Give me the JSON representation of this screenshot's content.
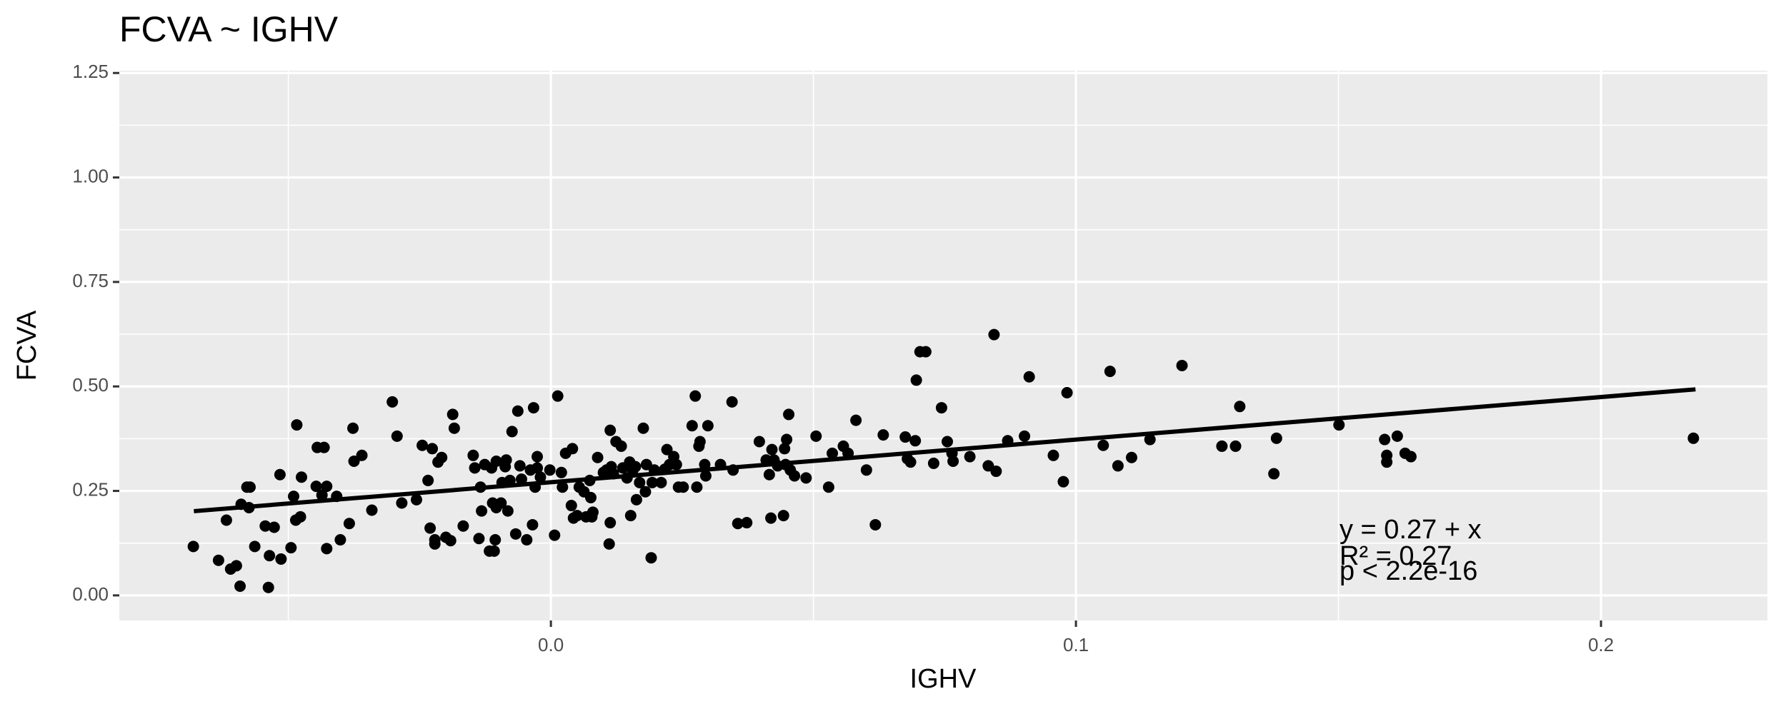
{
  "chart_data": {
    "type": "scatter",
    "title": "FCVA ~ IGHV",
    "x_label": "IGHV",
    "y_label": "FCVA",
    "color": "#000000",
    "grid": true,
    "xlim": [
      -0.0822,
      0.2317
    ],
    "ylim": [
      -0.06,
      1.2555
    ],
    "xticks": [
      {
        "value": 0,
        "label": "0.0"
      },
      0.1,
      0.2
    ],
    "yticks": [
      {
        "value": 0,
        "label": "0.00"
      },
      0.25,
      {
        "value": 0.5,
        "label": "0.50"
      },
      0.75,
      {
        "value": 1,
        "label": "1.00"
      },
      1.25
    ],
    "xminor": [
      -0.05,
      0.05,
      0.15
    ],
    "yminor": [
      0.125,
      0.375,
      0.625,
      0.875,
      1.125
    ],
    "x": [
      -0.0681,
      -0.0633,
      -0.0618,
      -0.061,
      -0.0599,
      -0.0592,
      -0.059,
      -0.0579,
      -0.0575,
      -0.0573,
      -0.0564,
      -0.0544,
      -0.0538,
      -0.0536,
      -0.0527,
      -0.0516,
      -0.0514,
      -0.0495,
      -0.049,
      -0.0486,
      -0.0484,
      -0.0477,
      -0.0475,
      -0.0447,
      -0.0445,
      -0.0436,
      -0.0432,
      -0.0427,
      -0.0427,
      -0.0408,
      -0.0401,
      -0.0384,
      -0.0377,
      -0.0375,
      -0.036,
      -0.0341,
      -0.0302,
      -0.0293,
      -0.0284,
      -0.0256,
      -0.0245,
      -0.0234,
      -0.023,
      -0.0226,
      -0.0221,
      -0.0221,
      -0.0215,
      -0.0208,
      -0.02,
      -0.0191,
      -0.0187,
      -0.0184,
      -0.0167,
      -0.0148,
      -0.0145,
      -0.0137,
      -0.0134,
      -0.0132,
      -0.0126,
      -0.0117,
      -0.0113,
      -0.0111,
      -0.0108,
      -0.0106,
      -0.0104,
      -0.0104,
      -0.0095,
      -0.0093,
      -0.0087,
      -0.0085,
      -0.0082,
      -0.0078,
      -0.0074,
      -0.0067,
      -0.0063,
      -0.0059,
      -0.0056,
      -0.0046,
      -0.0039,
      -0.0035,
      -0.0033,
      -0.003,
      -0.0026,
      -0.0026,
      -0.002,
      -0.0002,
      0.0007,
      0.0013,
      0.002,
      0.0022,
      0.0028,
      0.0039,
      0.0041,
      0.0043,
      0.005,
      0.0054,
      0.0063,
      0.0067,
      0.0074,
      0.0076,
      0.0078,
      0.008,
      0.0089,
      0.01,
      0.0106,
      0.0111,
      0.0113,
      0.0113,
      0.0115,
      0.0119,
      0.0124,
      0.0134,
      0.0137,
      0.0145,
      0.015,
      0.0152,
      0.0156,
      0.0161,
      0.0163,
      0.0169,
      0.0176,
      0.018,
      0.0182,
      0.0191,
      0.0193,
      0.0197,
      0.021,
      0.0217,
      0.0221,
      0.0226,
      0.0234,
      0.0239,
      0.0243,
      0.0252,
      0.0269,
      0.0275,
      0.0278,
      0.0282,
      0.0284,
      0.0293,
      0.0295,
      0.0299,
      0.0323,
      0.0345,
      0.0347,
      0.0356,
      0.0373,
      0.0397,
      0.041,
      0.0416,
      0.0421,
      0.0419,
      0.0425,
      0.0432,
      0.0443,
      0.0445,
      0.0447,
      0.0449,
      0.0453,
      0.0456,
      0.0464,
      0.0486,
      0.0505,
      0.0529,
      0.0536,
      0.0557,
      0.0566,
      0.0581,
      0.0601,
      0.0618,
      0.0633,
      0.0675,
      0.0679,
      0.0685,
      0.0694,
      0.0696,
      0.0703,
      0.0714,
      0.0729,
      0.0744,
      0.0755,
      0.0764,
      0.0766,
      0.0798,
      0.0833,
      0.0844,
      0.0848,
      0.087,
      0.0902,
      0.0911,
      0.0957,
      0.0976,
      0.0983,
      0.1052,
      0.1065,
      0.108,
      0.1106,
      0.1141,
      0.1202,
      0.1278,
      0.1304,
      0.1312,
      0.1377,
      0.1382,
      0.1501,
      0.1588,
      0.1592,
      0.1592,
      0.1612,
      0.1627,
      0.1638,
      0.2176
    ],
    "y": [
      0.117,
      0.084,
      0.18,
      0.063,
      0.071,
      0.022,
      0.218,
      0.259,
      0.21,
      0.259,
      0.117,
      0.166,
      0.019,
      0.095,
      0.163,
      0.289,
      0.087,
      0.114,
      0.237,
      0.18,
      0.408,
      0.188,
      0.283,
      0.261,
      0.354,
      0.24,
      0.354,
      0.261,
      0.112,
      0.237,
      0.133,
      0.172,
      0.4,
      0.321,
      0.335,
      0.204,
      0.463,
      0.381,
      0.221,
      0.229,
      0.359,
      0.275,
      0.161,
      0.351,
      0.123,
      0.133,
      0.319,
      0.33,
      0.139,
      0.131,
      0.433,
      0.4,
      0.166,
      0.335,
      0.305,
      0.136,
      0.259,
      0.202,
      0.313,
      0.106,
      0.305,
      0.221,
      0.106,
      0.133,
      0.21,
      0.321,
      0.221,
      0.27,
      0.308,
      0.324,
      0.202,
      0.275,
      0.392,
      0.147,
      0.441,
      0.31,
      0.278,
      0.133,
      0.3,
      0.169,
      0.449,
      0.259,
      0.305,
      0.332,
      0.283,
      0.3,
      0.144,
      0.477,
      0.294,
      0.259,
      0.34,
      0.215,
      0.351,
      0.185,
      0.191,
      0.259,
      0.248,
      0.188,
      0.275,
      0.234,
      0.188,
      0.199,
      0.33,
      0.294,
      0.3,
      0.123,
      0.395,
      0.174,
      0.308,
      0.291,
      0.368,
      0.357,
      0.305,
      0.281,
      0.319,
      0.191,
      0.3,
      0.308,
      0.229,
      0.27,
      0.4,
      0.248,
      0.313,
      0.09,
      0.27,
      0.3,
      0.27,
      0.302,
      0.349,
      0.313,
      0.332,
      0.313,
      0.259,
      0.259,
      0.406,
      0.477,
      0.259,
      0.357,
      0.368,
      0.313,
      0.286,
      0.406,
      0.313,
      0.463,
      0.3,
      0.172,
      0.174,
      0.368,
      0.324,
      0.289,
      0.349,
      0.185,
      0.324,
      0.31,
      0.191,
      0.351,
      0.313,
      0.373,
      0.433,
      0.3,
      0.286,
      0.281,
      0.381,
      0.259,
      0.34,
      0.357,
      0.34,
      0.419,
      0.3,
      0.169,
      0.384,
      0.379,
      0.327,
      0.319,
      0.37,
      0.515,
      0.583,
      0.583,
      0.316,
      0.449,
      0.368,
      0.34,
      0.321,
      0.332,
      0.31,
      0.624,
      0.297,
      0.37,
      0.381,
      0.523,
      0.335,
      0.272,
      0.485,
      0.359,
      0.536,
      0.31,
      0.33,
      0.373,
      0.55,
      0.357,
      0.357,
      0.452,
      0.291,
      0.376,
      0.408,
      0.373,
      0.335,
      0.319,
      0.381,
      0.34,
      0.332,
      0.376
    ],
    "trend_line": {
      "x": [
        -0.068,
        0.218
      ],
      "y": [
        0.2015,
        0.493
      ]
    },
    "annotations": [
      "y = 0.27 +  x",
      "R² = 0.27",
      "p < 2.2e-16"
    ]
  }
}
